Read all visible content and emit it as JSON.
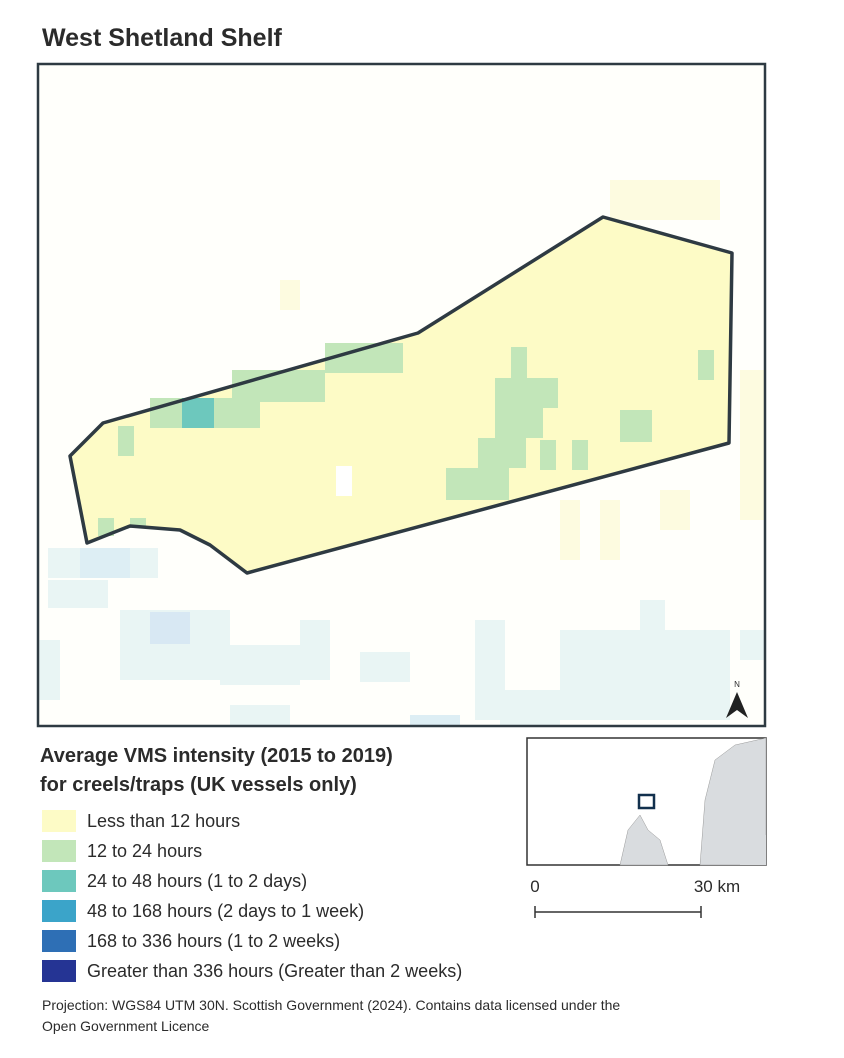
{
  "header": {
    "title": "West Shetland Shelf"
  },
  "map": {
    "north_label": "N"
  },
  "legend": {
    "title_lines": [
      "Average VMS intensity (2015 to 2019)",
      "for creels/traps (UK vessels only)"
    ],
    "items": [
      {
        "label": "Less than 12 hours",
        "color": "#fdfbc6"
      },
      {
        "label": "12 to 24 hours",
        "color": "#c2e6b9"
      },
      {
        "label": "24 to 48 hours (1 to 2 days)",
        "color": "#6dc8bd"
      },
      {
        "label": "48 to 168 hours (2 days to 1 week)",
        "color": "#3ba4c9"
      },
      {
        "label": "168 to 336 hours (1 to 2 weeks)",
        "color": "#2e6fb5"
      },
      {
        "label": "Greater than 336 hours (Greater than 2 weeks)",
        "color": "#253494"
      }
    ]
  },
  "scale_bar": {
    "start_label": "0",
    "end_label": "30 km"
  },
  "footer": {
    "lines": [
      "Projection: WGS84 UTM 30N. Scottish Government (2024). Contains data licensed under the",
      "Open Government Licence"
    ]
  }
}
